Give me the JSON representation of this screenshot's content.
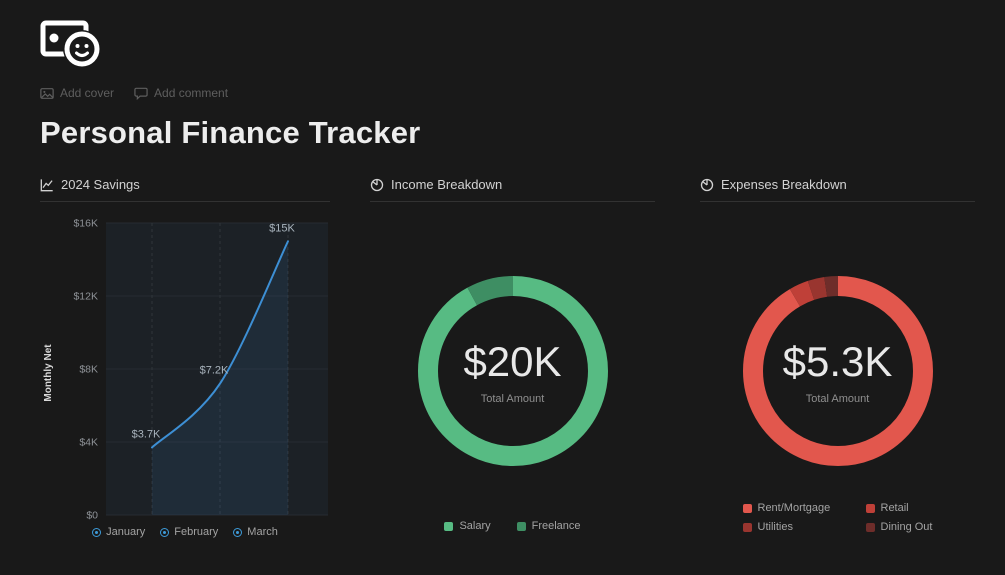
{
  "page": {
    "title": "Personal Finance Tracker",
    "add_cover_label": "Add cover",
    "add_comment_label": "Add comment"
  },
  "panels": {
    "savings": {
      "title": "2024 Savings"
    },
    "income": {
      "title": "Income Breakdown"
    },
    "expenses": {
      "title": "Expenses Breakdown"
    }
  },
  "colors": {
    "accent_blue": "#3d9bd9",
    "income_green": "#57bb83",
    "expense_red": "#e2574d"
  },
  "chart_data": [
    {
      "type": "line",
      "title": "2024 Savings",
      "x": [
        "January",
        "February",
        "March"
      ],
      "values": [
        3700,
        7200,
        15000
      ],
      "point_labels": [
        "$3.7K",
        "$7.2K",
        "$15K"
      ],
      "ylabel": "Monthly Net",
      "ylim": [
        0,
        16000
      ],
      "yticks": [
        {
          "label": "$0",
          "value": 0
        },
        {
          "label": "$4K",
          "value": 4000
        },
        {
          "label": "$8K",
          "value": 8000
        },
        {
          "label": "$12K",
          "value": 12000
        },
        {
          "label": "$16K",
          "value": 16000
        }
      ],
      "line_color": "#3d8fd4",
      "legend_marker_color": "#3d9bd9",
      "grid": true,
      "legend_position": "bottom"
    },
    {
      "type": "donut",
      "title": "Income Breakdown",
      "center_value": "$20K",
      "center_label": "Total Amount",
      "segments": [
        {
          "name": "Salary",
          "value": 18400,
          "color": "#57bb83"
        },
        {
          "name": "Freelance",
          "value": 1600,
          "color": "#3e8e63"
        }
      ],
      "legend_position": "bottom"
    },
    {
      "type": "donut",
      "title": "Expenses Breakdown",
      "center_value": "$5.3K",
      "center_label": "Total Amount",
      "segments": [
        {
          "name": "Rent/Mortgage",
          "value": 4850,
          "color": "#e2574d"
        },
        {
          "name": "Retail",
          "value": 175,
          "color": "#bf4038"
        },
        {
          "name": "Utilities",
          "value": 150,
          "color": "#99352f"
        },
        {
          "name": "Dining Out",
          "value": 125,
          "color": "#6e2d2a"
        }
      ],
      "legend_position": "bottom"
    }
  ]
}
